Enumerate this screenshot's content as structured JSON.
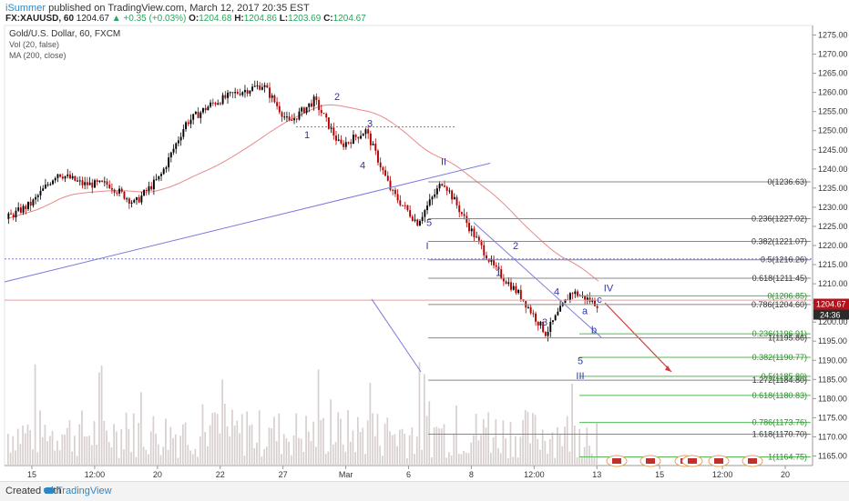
{
  "header": {
    "user": "iSummer",
    "published": "published on TradingView.com, March 12, 2017 20:35 EST",
    "symbol": "FX:XAUUSD, 60",
    "last": "1204.67",
    "change": "+0.35 (+0.03%)",
    "open_label": "O:",
    "open": "1204.68",
    "high_label": "H:",
    "high": "1204.86",
    "low_label": "L:",
    "low": "1203.69",
    "close_label": "C:",
    "close": "1204.67"
  },
  "legend": {
    "title": "Gold/U.S. Dollar, 60, FXCM",
    "vol": "Vol (20, false)",
    "ma": "MA (200, close)"
  },
  "footer": {
    "created": "Created with",
    "brand": "TradingView"
  },
  "colors": {
    "bull": "#000000",
    "bear": "#b00000",
    "ma": "#e88a8a",
    "trend": "#7b7bdc",
    "fib_gray": "#888888",
    "fib_green": "#56b856",
    "price_tag": "#b5121b",
    "volume": "#d8cfcf"
  },
  "chart_data": {
    "type": "candlestick",
    "price_axis": {
      "ylim": [
        1162.5,
        1277.5
      ],
      "ticks": [
        "1165.00",
        "1170.00",
        "1175.00",
        "1180.00",
        "1185.00",
        "1190.00",
        "1195.00",
        "1200.00",
        "1205.00",
        "1210.00",
        "1215.00",
        "1220.00",
        "1225.00",
        "1230.00",
        "1235.00",
        "1240.00",
        "1245.00",
        "1250.00",
        "1255.00",
        "1260.00",
        "1265.00",
        "1270.00",
        "1275.00"
      ]
    },
    "time_axis": {
      "ticks": [
        "15",
        "12:00",
        "20",
        "22",
        "27",
        "Mar",
        "6",
        "8",
        "12:00",
        "13",
        "15",
        "12:00",
        "20"
      ]
    },
    "current_price": "1204.67",
    "countdown": "24:36",
    "price_path": [
      [
        "Feb 14",
        1227
      ],
      [
        "Feb 15",
        1231
      ],
      [
        "Feb 16",
        1239
      ],
      [
        "Feb 17",
        1236
      ],
      [
        "Feb 20",
        1236
      ],
      [
        "Feb 21",
        1231
      ],
      [
        "Feb 22",
        1238
      ],
      [
        "Feb 23",
        1252
      ],
      [
        "Feb 24",
        1257
      ],
      [
        "Feb 26",
        1260
      ],
      [
        "Feb 27",
        1262
      ],
      [
        "Feb 28",
        1252
      ],
      [
        "Feb 28 (2)",
        1258
      ],
      [
        "Mar 1",
        1246
      ],
      [
        "Mar 2",
        1250
      ],
      [
        "Mar 3",
        1234
      ],
      [
        "Mar 3 (2)",
        1226
      ],
      [
        "Mar 6",
        1237
      ],
      [
        "Mar 7",
        1225
      ],
      [
        "Mar 8",
        1214
      ],
      [
        "Mar 9",
        1207
      ],
      [
        "Mar 10",
        1197
      ],
      [
        "Mar 10 (2)",
        1208
      ],
      [
        "Mar 12",
        1204.67
      ]
    ],
    "fib_levels": [
      {
        "label": "0(1236.63)",
        "value": 1236.63
      },
      {
        "label": "0.236(1227.02)",
        "value": 1227.02
      },
      {
        "label": "0.382(1221.07)",
        "value": 1221.07
      },
      {
        "label": "0.5(1216.26)",
        "value": 1216.26
      },
      {
        "label": "0.618(1211.45)",
        "value": 1211.45
      },
      {
        "label": "0.786(1204.60)",
        "value": 1204.6
      },
      {
        "label": "1(1195.86)",
        "value": 1195.86
      }
    ],
    "fib_extensions": [
      {
        "label": "0(1206.85)",
        "value": 1206.85
      },
      {
        "label": "0.236(1196.91)",
        "value": 1196.91
      },
      {
        "label": "0.382(1190.77)",
        "value": 1190.77
      },
      {
        "label": "0.5(1185.80)",
        "value": 1185.8
      },
      {
        "label": "0.618(1180.83)",
        "value": 1180.83
      },
      {
        "label": "0.786(1173.76)",
        "value": 1173.76
      },
      {
        "label": "1(1164.75)",
        "value": 1164.75
      }
    ],
    "fib_other": [
      {
        "label": "1.272(1184.80)",
        "value": 1184.8
      },
      {
        "label": "1.618(1170.70)",
        "value": 1170.7
      }
    ],
    "wave_labels": [
      "1",
      "2",
      "3",
      "4",
      "5",
      "I",
      "II",
      "1",
      "2",
      "3",
      "4",
      "5",
      "III",
      "a",
      "b",
      "c",
      "IV"
    ]
  }
}
